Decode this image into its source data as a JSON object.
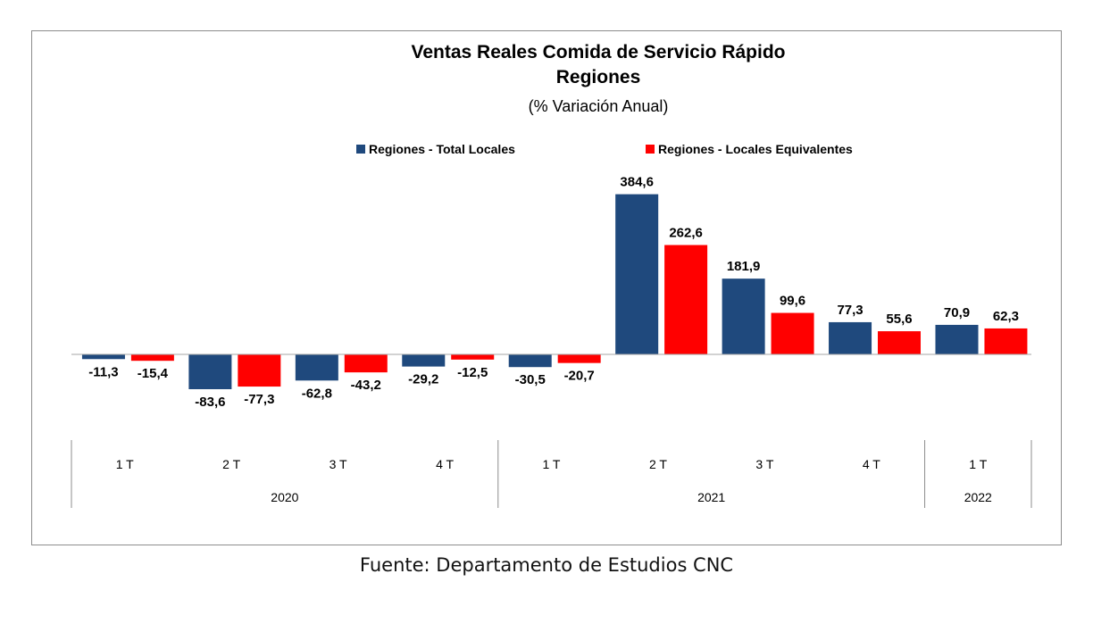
{
  "chart_data": {
    "type": "bar",
    "title": "Ventas Reales Comida de Servicio Rápido",
    "title_line2": "Regiones",
    "subtitle": "(% Variación Anual)",
    "categories": [
      "1 T",
      "2 T",
      "3 T",
      "4 T",
      "1 T",
      "2 T",
      "3 T",
      "4 T",
      "1 T"
    ],
    "category_groups": [
      {
        "label": "2020",
        "count": 4
      },
      {
        "label": "2021",
        "count": 4
      },
      {
        "label": "2022",
        "count": 1
      }
    ],
    "series": [
      {
        "name": "Regiones - Total Locales",
        "color": "#1f497d",
        "values": [
          -11.3,
          -83.6,
          -62.8,
          -29.2,
          -30.5,
          384.6,
          181.9,
          77.3,
          70.9
        ],
        "labels": [
          "-11,3",
          "-83,6",
          "-62,8",
          "-29,2",
          "-30,5",
          "384,6",
          "181,9",
          "77,3",
          "70,9"
        ]
      },
      {
        "name": "Regiones - Locales Equivalentes",
        "color": "#ff0000",
        "values": [
          -15.4,
          -77.3,
          -43.2,
          -12.5,
          -20.7,
          262.6,
          99.6,
          55.6,
          62.3
        ],
        "labels": [
          "-15,4",
          "-77,3",
          "-43,2",
          "-12,5",
          "-20,7",
          "262,6",
          "99,6",
          "55,6",
          "62,3"
        ]
      }
    ],
    "ylim": [
      -100,
      400
    ],
    "legend_position": "top",
    "grid": false
  },
  "source_note": "Fuente: Departamento de Estudios CNC"
}
